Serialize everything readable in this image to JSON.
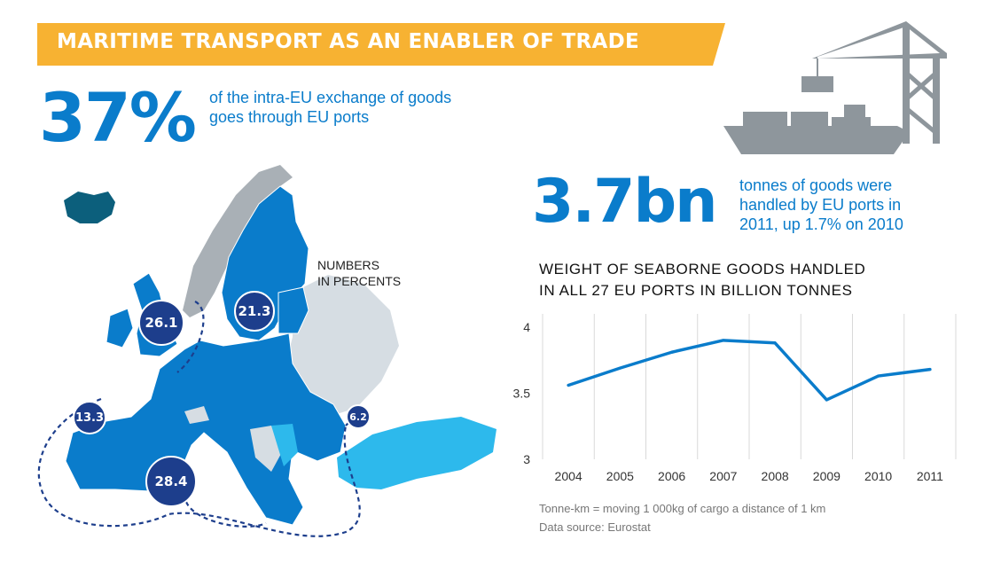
{
  "banner": {
    "title": "MARITIME TRANSPORT AS AN ENABLER OF TRADE",
    "color": "#f7b232"
  },
  "stat1": {
    "value": "37%",
    "lines": [
      "of the intra-EU exchange of goods",
      "goes through EU ports"
    ]
  },
  "stat2": {
    "value": "3.7bn",
    "lines": [
      "tonnes of goods were",
      "handled by EU ports in",
      "2011, up 1.7% on 2010"
    ]
  },
  "map": {
    "note_lines": [
      "NUMBERS",
      "IN PERCENTS"
    ],
    "bubbles": [
      "26.1",
      "21.3",
      "13.3",
      "6.2",
      "28.4"
    ],
    "colors": {
      "eu": "#0a7ccb",
      "candidate": "#2db9ec",
      "non_eu": "#d6dde3",
      "norway": "#a9b0b6",
      "iceland": "#0c5f7c",
      "bubble": "#1d3e8c"
    }
  },
  "chart_title_lines": [
    "WEIGHT OF SEABORNE GOODS HANDLED",
    "IN ALL 27 EU PORTS IN BILLION TONNES"
  ],
  "chart_data": {
    "type": "line",
    "title": "WEIGHT OF SEABORNE GOODS HANDLED IN ALL 27 EU PORTS IN BILLION TONNES",
    "x": [
      "2004",
      "2005",
      "2006",
      "2007",
      "2008",
      "2009",
      "2010",
      "2011"
    ],
    "series": [
      {
        "values": [
          3.56,
          3.69,
          3.81,
          3.9,
          3.88,
          3.45,
          3.63,
          3.68
        ]
      }
    ],
    "ylim": [
      3,
      4.1
    ],
    "yticks": [
      "4",
      "3.5",
      "3"
    ],
    "grid": "vertical",
    "color": "#0a7ccb"
  },
  "footnote": {
    "line1": "Tonne-km = moving 1 000kg of cargo a distance of 1 km",
    "line2": "Data source: Eurostat"
  },
  "icons": {
    "crane": "port-crane-ship-icon"
  }
}
